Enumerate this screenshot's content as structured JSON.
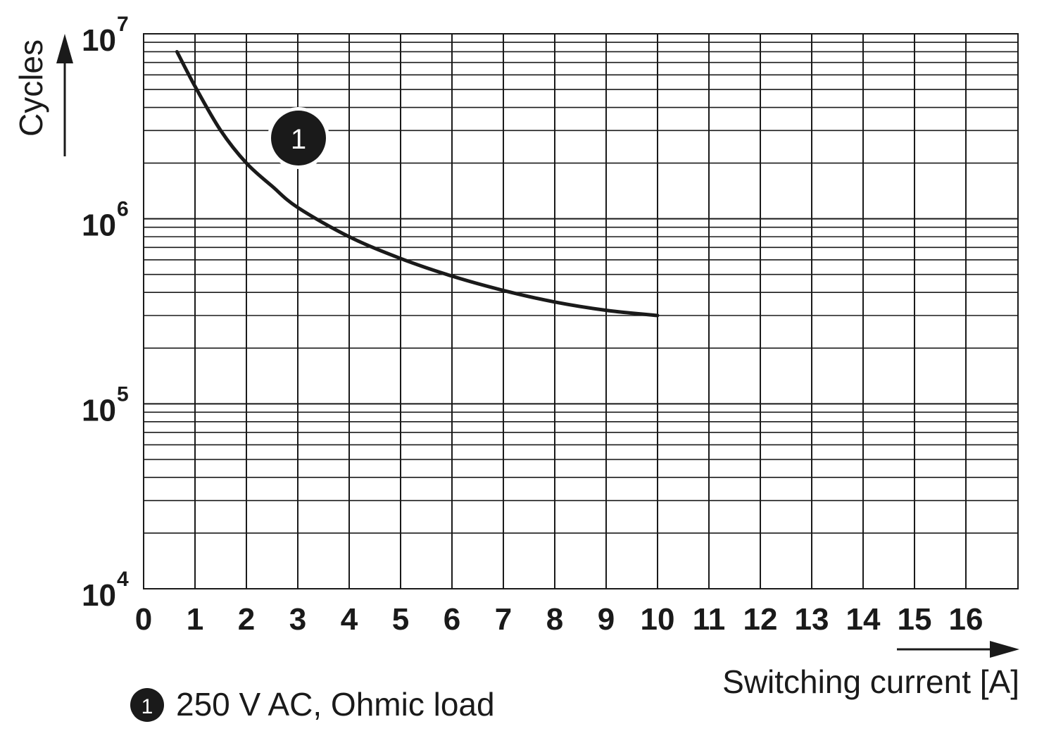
{
  "chart_data": {
    "type": "line",
    "xlabel": "Switching current [A]",
    "ylabel": "Cycles",
    "xlim": [
      0,
      17
    ],
    "ylim": [
      10000,
      10000000
    ],
    "yscale": "log",
    "grid": true,
    "x_ticks": [
      "0",
      "1",
      "2",
      "3",
      "4",
      "5",
      "6",
      "7",
      "8",
      "9",
      "10",
      "11",
      "12",
      "13",
      "14",
      "15",
      "16"
    ],
    "y_ticks": [
      {
        "base": "10",
        "exp": "4"
      },
      {
        "base": "10",
        "exp": "5"
      },
      {
        "base": "10",
        "exp": "6"
      },
      {
        "base": "10",
        "exp": "7"
      }
    ],
    "series": [
      {
        "marker": "1",
        "name": "250 V AC, Ohmic load",
        "color": "#1a1a1a",
        "x": [
          0.65,
          1,
          1.5,
          2,
          2.5,
          3,
          4,
          5,
          6,
          7,
          8,
          9,
          10
        ],
        "y": [
          8000000,
          5200000,
          3000000,
          2000000,
          1500000,
          1150000,
          800000,
          610000,
          490000,
          410000,
          355000,
          320000,
          300000
        ]
      }
    ],
    "legend": {
      "placement": "bottom-left",
      "marker": "1",
      "text": "250 V AC, Ohmic load"
    }
  }
}
